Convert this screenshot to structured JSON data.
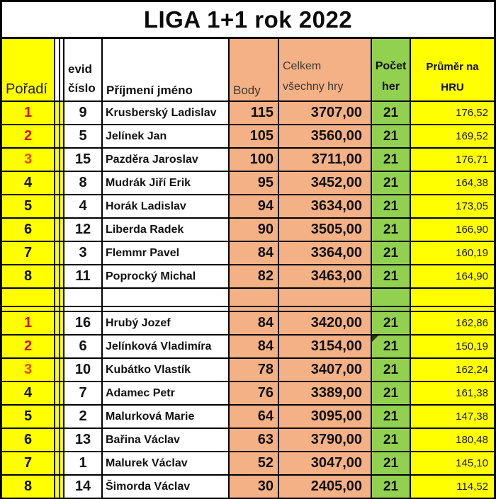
{
  "title": "LIGA 1+1 rok 2022",
  "header": {
    "poradi": "Pořadí",
    "evid": "evid\nčíslo",
    "prijmeni": "Příjmení jméno",
    "body": "Body",
    "celkem": "Celkem\nvšechny hry",
    "pocet": "Počet\nher",
    "prumer": "Průměr na\nHRU"
  },
  "colors": {
    "yellow": "#ffff00",
    "orange": "#f3b185",
    "green": "#92d050",
    "rank_red": "#d90f00",
    "rank_orange": "#f44500",
    "text": "#111111"
  },
  "sections": [
    {
      "rows": [
        {
          "rank": "1",
          "evid": "9",
          "name": "Krusberský Ladislav",
          "body": "115",
          "celkem": "3707,00",
          "pocet": "21",
          "prumer": "176,52"
        },
        {
          "rank": "2",
          "evid": "5",
          "name": "Jelínek Jan",
          "body": "105",
          "celkem": "3560,00",
          "pocet": "21",
          "prumer": "169,52"
        },
        {
          "rank": "3",
          "evid": "15",
          "name": "Pazděra Jaroslav",
          "body": "100",
          "celkem": "3711,00",
          "pocet": "21",
          "prumer": "176,71"
        },
        {
          "rank": "4",
          "evid": "8",
          "name": "Mudrák Jiří Erik",
          "body": "95",
          "celkem": "3452,00",
          "pocet": "21",
          "prumer": "164,38"
        },
        {
          "rank": "5",
          "evid": "4",
          "name": "Horák Ladislav",
          "body": "94",
          "celkem": "3634,00",
          "pocet": "21",
          "prumer": "173,05"
        },
        {
          "rank": "6",
          "evid": "12",
          "name": "Liberda Radek",
          "body": "90",
          "celkem": "3505,00",
          "pocet": "21",
          "prumer": "166,90"
        },
        {
          "rank": "7",
          "evid": "3",
          "name": "Flemmr Pavel",
          "body": "84",
          "celkem": "3364,00",
          "pocet": "21",
          "prumer": "160,19"
        },
        {
          "rank": "8",
          "evid": "11",
          "name": "Poprocký Michal",
          "body": "82",
          "celkem": "3463,00",
          "pocet": "21",
          "prumer": "164,90"
        }
      ]
    },
    {
      "rows": [
        {
          "rank": "1",
          "evid": "16",
          "name": "Hrubý Jozef",
          "body": "84",
          "celkem": "3420,00",
          "pocet": "21",
          "prumer": "162,86"
        },
        {
          "rank": "2",
          "evid": "6",
          "name": "Jelínková Vladimíra",
          "body": "84",
          "celkem": "3154,00",
          "pocet": "21",
          "prumer": "150,19",
          "marker": true
        },
        {
          "rank": "3",
          "evid": "10",
          "name": "Kubátko Vlastík",
          "body": "78",
          "celkem": "3407,00",
          "pocet": "21",
          "prumer": "162,24"
        },
        {
          "rank": "4",
          "evid": "7",
          "name": "Adamec Petr",
          "body": "76",
          "celkem": "3389,00",
          "pocet": "21",
          "prumer": "161,38"
        },
        {
          "rank": "5",
          "evid": "2",
          "name": "Malurková Marie",
          "body": "64",
          "celkem": "3095,00",
          "pocet": "21",
          "prumer": "147,38"
        },
        {
          "rank": "6",
          "evid": "13",
          "name": "Bařina Václav",
          "body": "63",
          "celkem": "3790,00",
          "pocet": "21",
          "prumer": "180,48"
        },
        {
          "rank": "7",
          "evid": "1",
          "name": "Malurek Václav",
          "body": "52",
          "celkem": "3047,00",
          "pocet": "21",
          "prumer": "145,10"
        },
        {
          "rank": "8",
          "evid": "14",
          "name": "Šimorda Václav",
          "body": "30",
          "celkem": "2405,00",
          "pocet": "21",
          "prumer": "114,52"
        }
      ]
    }
  ]
}
